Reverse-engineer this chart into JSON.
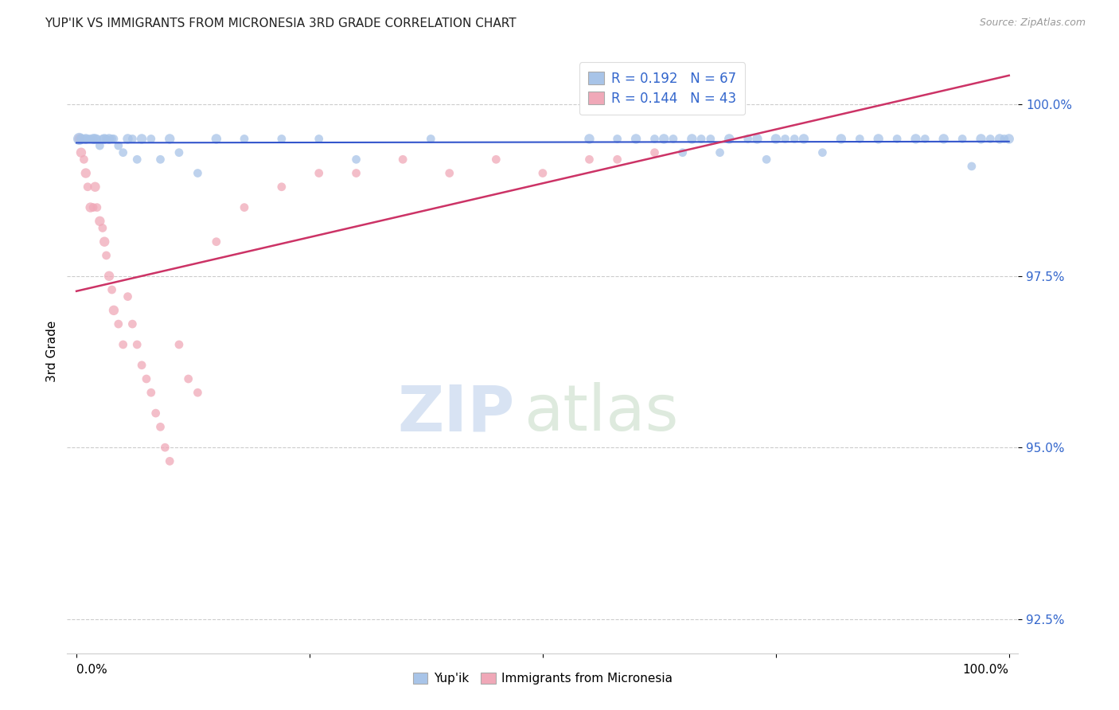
{
  "title": "YUP'IK VS IMMIGRANTS FROM MICRONESIA 3RD GRADE CORRELATION CHART",
  "source": "Source: ZipAtlas.com",
  "ylabel": "3rd Grade",
  "legend_labels": [
    "Yup'ik",
    "Immigrants from Micronesia"
  ],
  "blue_R": 0.192,
  "blue_N": 67,
  "pink_R": 0.144,
  "pink_N": 43,
  "blue_color": "#a8c4e8",
  "pink_color": "#f0a8b8",
  "blue_line_color": "#3355cc",
  "pink_line_color": "#cc3366",
  "watermark_zip": "ZIP",
  "watermark_atlas": "atlas",
  "ylim": [
    92.0,
    100.8
  ],
  "xlim": [
    -1.0,
    101.0
  ],
  "yticks": [
    92.5,
    95.0,
    97.5,
    100.0
  ],
  "ytick_labels": [
    "92.5%",
    "95.0%",
    "97.5%",
    "100.0%"
  ],
  "blue_x": [
    0.3,
    0.5,
    0.8,
    1.0,
    1.2,
    1.5,
    1.8,
    2.0,
    2.2,
    2.5,
    2.8,
    3.0,
    3.2,
    3.5,
    3.8,
    4.0,
    4.5,
    5.0,
    5.5,
    6.0,
    6.5,
    7.0,
    8.0,
    9.0,
    10.0,
    11.0,
    13.0,
    15.0,
    18.0,
    22.0,
    26.0,
    30.0,
    38.0,
    55.0,
    58.0,
    60.0,
    62.0,
    63.0,
    64.0,
    65.0,
    66.0,
    67.0,
    68.0,
    69.0,
    70.0,
    72.0,
    73.0,
    74.0,
    75.0,
    76.0,
    77.0,
    78.0,
    80.0,
    82.0,
    84.0,
    86.0,
    88.0,
    90.0,
    91.0,
    93.0,
    95.0,
    96.0,
    97.0,
    98.0,
    99.0,
    99.5,
    100.0
  ],
  "blue_y": [
    99.5,
    99.5,
    99.5,
    99.5,
    99.5,
    99.5,
    99.5,
    99.5,
    99.5,
    99.4,
    99.5,
    99.5,
    99.5,
    99.5,
    99.5,
    99.5,
    99.4,
    99.3,
    99.5,
    99.5,
    99.2,
    99.5,
    99.5,
    99.2,
    99.5,
    99.3,
    99.0,
    99.5,
    99.5,
    99.5,
    99.5,
    99.2,
    99.5,
    99.5,
    99.5,
    99.5,
    99.5,
    99.5,
    99.5,
    99.3,
    99.5,
    99.5,
    99.5,
    99.3,
    99.5,
    99.5,
    99.5,
    99.2,
    99.5,
    99.5,
    99.5,
    99.5,
    99.3,
    99.5,
    99.5,
    99.5,
    99.5,
    99.5,
    99.5,
    99.5,
    99.5,
    99.1,
    99.5,
    99.5,
    99.5,
    99.5,
    99.5
  ],
  "blue_sizes": [
    120,
    80,
    60,
    80,
    60,
    60,
    80,
    80,
    60,
    60,
    60,
    80,
    60,
    80,
    60,
    60,
    60,
    60,
    80,
    60,
    60,
    80,
    60,
    60,
    80,
    60,
    60,
    80,
    60,
    60,
    60,
    60,
    60,
    80,
    60,
    80,
    60,
    80,
    60,
    60,
    80,
    60,
    60,
    60,
    80,
    60,
    80,
    60,
    80,
    60,
    60,
    80,
    60,
    80,
    60,
    80,
    60,
    80,
    60,
    80,
    60,
    60,
    80,
    60,
    80,
    60,
    80
  ],
  "pink_x": [
    0.3,
    0.5,
    0.8,
    1.0,
    1.2,
    1.5,
    1.8,
    2.0,
    2.2,
    2.5,
    2.8,
    3.0,
    3.2,
    3.5,
    3.8,
    4.0,
    4.5,
    5.0,
    5.5,
    6.0,
    6.5,
    7.0,
    7.5,
    8.0,
    8.5,
    9.0,
    9.5,
    10.0,
    11.0,
    12.0,
    13.0,
    15.0,
    18.0,
    22.0,
    26.0,
    30.0,
    35.0,
    40.0,
    45.0,
    50.0,
    55.0,
    58.0,
    62.0
  ],
  "pink_y": [
    99.5,
    99.3,
    99.2,
    99.0,
    98.8,
    98.5,
    98.5,
    98.8,
    98.5,
    98.3,
    98.2,
    98.0,
    97.8,
    97.5,
    97.3,
    97.0,
    96.8,
    96.5,
    97.2,
    96.8,
    96.5,
    96.2,
    96.0,
    95.8,
    95.5,
    95.3,
    95.0,
    94.8,
    96.5,
    96.0,
    95.8,
    98.0,
    98.5,
    98.8,
    99.0,
    99.0,
    99.2,
    99.0,
    99.2,
    99.0,
    99.2,
    99.2,
    99.3
  ],
  "pink_sizes": [
    80,
    80,
    60,
    80,
    60,
    80,
    60,
    80,
    60,
    80,
    60,
    80,
    60,
    80,
    60,
    80,
    60,
    60,
    60,
    60,
    60,
    60,
    60,
    60,
    60,
    60,
    60,
    60,
    60,
    60,
    60,
    60,
    60,
    60,
    60,
    60,
    60,
    60,
    60,
    60,
    60,
    60,
    60
  ]
}
